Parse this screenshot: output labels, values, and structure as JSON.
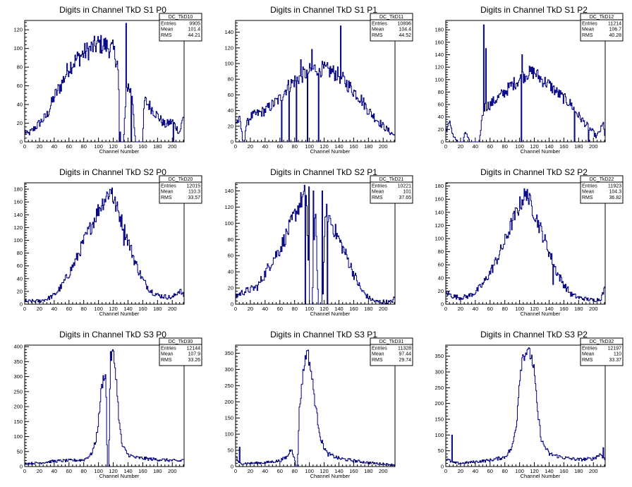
{
  "page": {
    "background": "#ffffff",
    "line_color": "#000080",
    "axis_color": "#000000"
  },
  "chart_data": [
    {
      "type": "histogram",
      "title": "Digits in Channel TkD S1 P0",
      "xlabel": "Channel Number",
      "xlim": [
        0,
        216
      ],
      "ylim": [
        0,
        130
      ],
      "xticks": [
        0,
        20,
        40,
        60,
        80,
        100,
        120,
        140,
        160,
        180,
        200
      ],
      "yticks": [
        0,
        20,
        40,
        60,
        80,
        100,
        120
      ],
      "stats": {
        "name": "DC_TkD10",
        "entries": "9905",
        "mean": "101.4",
        "rms": "44.21"
      },
      "profile": [
        [
          0,
          12
        ],
        [
          4,
          8
        ],
        [
          10,
          12
        ],
        [
          20,
          20
        ],
        [
          30,
          28
        ],
        [
          40,
          48
        ],
        [
          50,
          62
        ],
        [
          60,
          80
        ],
        [
          70,
          88
        ],
        [
          80,
          95
        ],
        [
          90,
          100
        ],
        [
          100,
          105
        ],
        [
          110,
          103
        ],
        [
          120,
          98
        ],
        [
          126,
          85
        ],
        [
          130,
          0
        ],
        [
          134,
          0
        ],
        [
          138,
          56
        ],
        [
          140,
          60
        ],
        [
          146,
          50
        ],
        [
          150,
          0
        ],
        [
          160,
          0
        ],
        [
          162,
          44
        ],
        [
          166,
          42
        ],
        [
          170,
          38
        ],
        [
          180,
          28
        ],
        [
          190,
          18
        ],
        [
          200,
          22
        ],
        [
          210,
          10
        ],
        [
          216,
          30
        ]
      ],
      "spikes": [
        [
          137,
          127
        ],
        [
          128,
          0
        ],
        [
          132,
          0
        ],
        [
          144,
          0
        ],
        [
          201,
          0
        ],
        [
          166,
          40
        ],
        [
          103,
          114
        ]
      ]
    },
    {
      "type": "histogram",
      "title": "Digits in Channel TkD S1 P1",
      "xlabel": "Channel Number",
      "xlim": [
        0,
        216
      ],
      "ylim": [
        0,
        155
      ],
      "xticks": [
        0,
        20,
        40,
        60,
        80,
        100,
        120,
        140,
        160,
        180,
        200
      ],
      "yticks": [
        0,
        20,
        40,
        60,
        80,
        100,
        120,
        140
      ],
      "stats": {
        "name": "DC_TkD11",
        "entries": "10896",
        "mean": "104.4",
        "rms": "44.52"
      },
      "profile": [
        [
          0,
          25
        ],
        [
          6,
          28
        ],
        [
          10,
          0
        ],
        [
          12,
          0
        ],
        [
          14,
          20
        ],
        [
          20,
          32
        ],
        [
          40,
          40
        ],
        [
          60,
          55
        ],
        [
          70,
          70
        ],
        [
          80,
          78
        ],
        [
          90,
          85
        ],
        [
          100,
          90
        ],
        [
          110,
          95
        ],
        [
          120,
          92
        ],
        [
          130,
          90
        ],
        [
          140,
          85
        ],
        [
          150,
          75
        ],
        [
          160,
          65
        ],
        [
          170,
          55
        ],
        [
          180,
          40
        ],
        [
          190,
          30
        ],
        [
          200,
          20
        ],
        [
          210,
          12
        ],
        [
          216,
          8
        ]
      ],
      "spikes": [
        [
          142,
          148
        ],
        [
          103,
          118
        ],
        [
          62,
          0
        ],
        [
          72,
          0
        ],
        [
          82,
          0
        ],
        [
          97,
          0
        ],
        [
          112,
          0
        ],
        [
          88,
          105
        ]
      ]
    },
    {
      "type": "histogram",
      "title": "Digits in Channel TkD S1 P2",
      "xlabel": "Channel Number",
      "xlim": [
        0,
        216
      ],
      "ylim": [
        0,
        195
      ],
      "xticks": [
        0,
        20,
        40,
        60,
        80,
        100,
        120,
        140,
        160,
        180,
        200
      ],
      "yticks": [
        0,
        20,
        40,
        60,
        80,
        100,
        120,
        140,
        160,
        180
      ],
      "stats": {
        "name": "DC_TkD12",
        "entries": "11214",
        "mean": "106.7",
        "rms": "40.28"
      },
      "profile": [
        [
          0,
          20
        ],
        [
          6,
          30
        ],
        [
          10,
          10
        ],
        [
          16,
          0
        ],
        [
          24,
          0
        ],
        [
          26,
          18
        ],
        [
          32,
          0
        ],
        [
          46,
          0
        ],
        [
          48,
          30
        ],
        [
          52,
          55
        ],
        [
          60,
          60
        ],
        [
          70,
          70
        ],
        [
          80,
          80
        ],
        [
          90,
          92
        ],
        [
          100,
          100
        ],
        [
          110,
          110
        ],
        [
          120,
          112
        ],
        [
          130,
          100
        ],
        [
          140,
          92
        ],
        [
          150,
          80
        ],
        [
          160,
          70
        ],
        [
          170,
          60
        ],
        [
          180,
          42
        ],
        [
          190,
          28
        ],
        [
          200,
          15
        ],
        [
          204,
          8
        ],
        [
          210,
          20
        ],
        [
          214,
          30
        ],
        [
          216,
          5
        ]
      ],
      "spikes": [
        [
          51,
          188
        ],
        [
          54,
          150
        ],
        [
          102,
          0
        ],
        [
          103,
          140
        ],
        [
          174,
          0
        ],
        [
          193,
          0
        ]
      ]
    },
    {
      "type": "histogram",
      "title": "Digits in Channel TkD S2 P0",
      "xlabel": "Channel Number",
      "xlim": [
        0,
        216
      ],
      "ylim": [
        0,
        190
      ],
      "xticks": [
        0,
        20,
        40,
        60,
        80,
        100,
        120,
        140,
        160,
        180,
        200
      ],
      "yticks": [
        0,
        20,
        40,
        60,
        80,
        100,
        120,
        140,
        160,
        180
      ],
      "stats": {
        "name": "DC_TkD20",
        "entries": "12015",
        "mean": "110.3",
        "rms": "33.57"
      },
      "profile": [
        [
          0,
          4
        ],
        [
          20,
          5
        ],
        [
          30,
          8
        ],
        [
          40,
          14
        ],
        [
          50,
          28
        ],
        [
          60,
          48
        ],
        [
          70,
          70
        ],
        [
          80,
          98
        ],
        [
          90,
          122
        ],
        [
          100,
          148
        ],
        [
          110,
          168
        ],
        [
          116,
          178
        ],
        [
          120,
          165
        ],
        [
          130,
          135
        ],
        [
          140,
          100
        ],
        [
          150,
          65
        ],
        [
          160,
          38
        ],
        [
          170,
          22
        ],
        [
          180,
          14
        ],
        [
          190,
          12
        ],
        [
          200,
          10
        ],
        [
          210,
          22
        ],
        [
          216,
          12
        ]
      ],
      "spikes": [
        [
          118,
          182
        ],
        [
          134,
          92
        ]
      ]
    },
    {
      "type": "histogram",
      "title": "Digits in Channel TkD S2 P1",
      "xlabel": "Channel Number",
      "xlim": [
        0,
        216
      ],
      "ylim": [
        0,
        150
      ],
      "xticks": [
        0,
        20,
        40,
        60,
        80,
        100,
        120,
        140,
        160,
        180,
        200
      ],
      "yticks": [
        0,
        20,
        40,
        60,
        80,
        100,
        120,
        140
      ],
      "stats": {
        "name": "DC_TkD21",
        "entries": "10221",
        "mean": "101",
        "rms": "37.65"
      },
      "profile": [
        [
          0,
          10
        ],
        [
          10,
          15
        ],
        [
          20,
          18
        ],
        [
          30,
          22
        ],
        [
          40,
          38
        ],
        [
          50,
          55
        ],
        [
          60,
          68
        ],
        [
          70,
          88
        ],
        [
          80,
          110
        ],
        [
          90,
          130
        ],
        [
          96,
          140
        ],
        [
          100,
          0
        ],
        [
          104,
          0
        ],
        [
          108,
          130
        ],
        [
          112,
          0
        ],
        [
          118,
          0
        ],
        [
          122,
          120
        ],
        [
          130,
          100
        ],
        [
          140,
          80
        ],
        [
          150,
          60
        ],
        [
          160,
          38
        ],
        [
          170,
          18
        ],
        [
          180,
          8
        ],
        [
          190,
          3
        ],
        [
          200,
          3
        ],
        [
          210,
          2
        ],
        [
          216,
          8
        ]
      ],
      "spikes": [
        [
          99,
          145
        ],
        [
          105,
          140
        ],
        [
          117,
          140
        ],
        [
          94,
          0
        ],
        [
          124,
          0
        ]
      ]
    },
    {
      "type": "histogram",
      "title": "Digits in Channel TkD S2 P2",
      "xlabel": "Channel Number",
      "xlim": [
        0,
        216
      ],
      "ylim": [
        0,
        185
      ],
      "xticks": [
        0,
        20,
        40,
        60,
        80,
        100,
        120,
        140,
        160,
        180,
        200
      ],
      "yticks": [
        0,
        20,
        40,
        60,
        80,
        100,
        120,
        140,
        160,
        180
      ],
      "stats": {
        "name": "DC_TkD22",
        "entries": "11923",
        "mean": "104.3",
        "rms": "36.82"
      },
      "profile": [
        [
          0,
          18
        ],
        [
          10,
          12
        ],
        [
          20,
          10
        ],
        [
          30,
          12
        ],
        [
          40,
          18
        ],
        [
          50,
          30
        ],
        [
          60,
          48
        ],
        [
          70,
          70
        ],
        [
          80,
          95
        ],
        [
          90,
          125
        ],
        [
          100,
          150
        ],
        [
          106,
          165
        ],
        [
          112,
          160
        ],
        [
          120,
          140
        ],
        [
          130,
          110
        ],
        [
          140,
          80
        ],
        [
          150,
          50
        ],
        [
          160,
          30
        ],
        [
          170,
          15
        ],
        [
          180,
          10
        ],
        [
          190,
          8
        ],
        [
          200,
          6
        ],
        [
          210,
          8
        ],
        [
          216,
          25
        ]
      ],
      "spikes": [
        [
          110,
          175
        ],
        [
          145,
          30
        ]
      ]
    },
    {
      "type": "histogram",
      "title": "Digits in Channel TkD S3 P0",
      "xlabel": "Channel Number",
      "xlim": [
        0,
        216
      ],
      "ylim": [
        0,
        405
      ],
      "xticks": [
        0,
        20,
        40,
        60,
        80,
        100,
        120,
        140,
        160,
        180,
        200
      ],
      "yticks": [
        0,
        50,
        100,
        150,
        200,
        250,
        300,
        350,
        400
      ],
      "stats": {
        "name": "DC_TkD30",
        "entries": "12144",
        "mean": "107.9",
        "rms": "33.26"
      },
      "profile": [
        [
          0,
          10
        ],
        [
          20,
          12
        ],
        [
          40,
          18
        ],
        [
          60,
          20
        ],
        [
          80,
          22
        ],
        [
          90,
          40
        ],
        [
          96,
          80
        ],
        [
          100,
          150
        ],
        [
          104,
          260
        ],
        [
          108,
          310
        ],
        [
          110,
          300
        ],
        [
          112,
          0
        ],
        [
          114,
          0
        ],
        [
          116,
          360
        ],
        [
          120,
          380
        ],
        [
          124,
          300
        ],
        [
          128,
          150
        ],
        [
          132,
          70
        ],
        [
          140,
          40
        ],
        [
          150,
          30
        ],
        [
          170,
          25
        ],
        [
          190,
          22
        ],
        [
          210,
          18
        ],
        [
          216,
          25
        ]
      ],
      "spikes": [
        [
          119,
          390
        ]
      ]
    },
    {
      "type": "histogram",
      "title": "Digits in Channel TkD S3 P1",
      "xlabel": "Channel Number",
      "xlim": [
        0,
        216
      ],
      "ylim": [
        0,
        375
      ],
      "xticks": [
        0,
        20,
        40,
        60,
        80,
        100,
        120,
        140,
        160,
        180,
        200
      ],
      "yticks": [
        0,
        50,
        100,
        150,
        200,
        250,
        300,
        350
      ],
      "stats": {
        "name": "DC_TkD31",
        "entries": "11328",
        "mean": "97.44",
        "rms": "29.74"
      },
      "profile": [
        [
          0,
          35
        ],
        [
          4,
          10
        ],
        [
          20,
          10
        ],
        [
          40,
          12
        ],
        [
          60,
          18
        ],
        [
          70,
          30
        ],
        [
          76,
          60
        ],
        [
          82,
          0
        ],
        [
          84,
          0
        ],
        [
          86,
          160
        ],
        [
          90,
          260
        ],
        [
          94,
          330
        ],
        [
          98,
          350
        ],
        [
          102,
          300
        ],
        [
          106,
          230
        ],
        [
          110,
          160
        ],
        [
          116,
          80
        ],
        [
          124,
          40
        ],
        [
          140,
          25
        ],
        [
          160,
          18
        ],
        [
          180,
          12
        ],
        [
          200,
          8
        ],
        [
          216,
          5
        ]
      ],
      "spikes": [
        [
          96,
          358
        ],
        [
          5,
          60
        ]
      ]
    },
    {
      "type": "histogram",
      "title": "Digits in Channel TkD S3 P2",
      "xlabel": "Channel Number",
      "xlim": [
        0,
        216
      ],
      "ylim": [
        0,
        385
      ],
      "xticks": [
        0,
        20,
        40,
        60,
        80,
        100,
        120,
        140,
        160,
        180,
        200
      ],
      "yticks": [
        0,
        50,
        100,
        150,
        200,
        250,
        300,
        350
      ],
      "stats": {
        "name": "DC_TkD32",
        "entries": "12197",
        "mean": "110",
        "rms": "33.37"
      },
      "profile": [
        [
          0,
          25
        ],
        [
          10,
          12
        ],
        [
          20,
          10
        ],
        [
          40,
          15
        ],
        [
          60,
          20
        ],
        [
          80,
          30
        ],
        [
          90,
          60
        ],
        [
          96,
          140
        ],
        [
          100,
          280
        ],
        [
          104,
          350
        ],
        [
          110,
          365
        ],
        [
          116,
          350
        ],
        [
          120,
          300
        ],
        [
          124,
          180
        ],
        [
          130,
          80
        ],
        [
          140,
          40
        ],
        [
          160,
          28
        ],
        [
          180,
          22
        ],
        [
          200,
          25
        ],
        [
          210,
          40
        ],
        [
          216,
          20
        ]
      ],
      "spikes": [
        [
          110,
          370
        ],
        [
          8,
          100
        ],
        [
          213,
          60
        ]
      ]
    }
  ]
}
